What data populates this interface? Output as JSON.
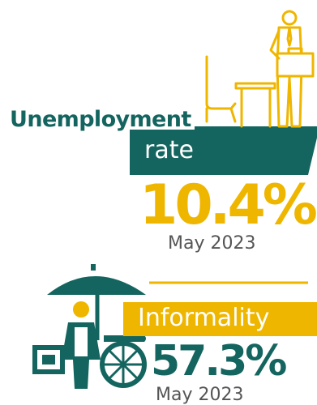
{
  "colors": {
    "teal": "#14655f",
    "yellow": "#efb600",
    "gray": "#555555",
    "white": "#ffffff"
  },
  "unemployment": {
    "heading": "Unemployment",
    "subheading": "rate",
    "value": "10.4%",
    "date": "May 2023",
    "icon": "office-worker-desk-icon"
  },
  "informality": {
    "label": "Informality",
    "value": "57.3%",
    "date": "May 2023",
    "icon": "street-vendor-cart-icon"
  }
}
